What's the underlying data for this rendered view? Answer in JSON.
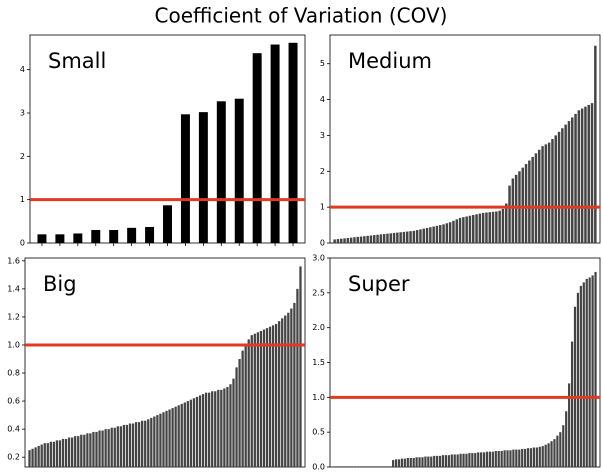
{
  "title": "Coefficient of Variation (COV)",
  "chart_data": [
    {
      "type": "bar",
      "title": "Small",
      "color": "#000000",
      "threshold": 1,
      "threshold_color": "#e03a22",
      "values": [
        0.2,
        0.2,
        0.22,
        0.3,
        0.3,
        0.35,
        0.37,
        0.87,
        2.97,
        3.02,
        3.27,
        3.33,
        4.38,
        4.58,
        4.62
      ],
      "ylim": [
        0,
        4.8
      ],
      "yticks": [
        0,
        1,
        2,
        3,
        4
      ]
    },
    {
      "type": "bar",
      "title": "Medium",
      "color": "#444444",
      "threshold": 1,
      "threshold_color": "#e03a22",
      "values": [
        0.1,
        0.11,
        0.12,
        0.13,
        0.14,
        0.15,
        0.16,
        0.17,
        0.18,
        0.19,
        0.2,
        0.21,
        0.22,
        0.23,
        0.24,
        0.25,
        0.26,
        0.27,
        0.28,
        0.29,
        0.3,
        0.31,
        0.32,
        0.33,
        0.34,
        0.36,
        0.38,
        0.4,
        0.42,
        0.44,
        0.46,
        0.48,
        0.5,
        0.52,
        0.55,
        0.58,
        0.62,
        0.66,
        0.7,
        0.72,
        0.74,
        0.76,
        0.78,
        0.8,
        0.82,
        0.84,
        0.85,
        0.86,
        0.87,
        0.88,
        0.9,
        0.95,
        1.1,
        1.6,
        1.8,
        1.9,
        2.0,
        2.1,
        2.2,
        2.3,
        2.4,
        2.5,
        2.6,
        2.7,
        2.75,
        2.8,
        2.9,
        3.0,
        3.1,
        3.2,
        3.3,
        3.4,
        3.5,
        3.6,
        3.7,
        3.75,
        3.8,
        3.85,
        3.9,
        5.5
      ],
      "ylim": [
        0,
        5.8
      ],
      "yticks": [
        0,
        1,
        2,
        3,
        4,
        5
      ]
    },
    {
      "type": "bar",
      "title": "Big",
      "color": "#444444",
      "threshold": 1,
      "threshold_color": "#e03a22",
      "values": [
        0.25,
        0.26,
        0.27,
        0.28,
        0.29,
        0.3,
        0.3,
        0.31,
        0.31,
        0.32,
        0.32,
        0.33,
        0.33,
        0.34,
        0.34,
        0.35,
        0.35,
        0.36,
        0.36,
        0.37,
        0.37,
        0.38,
        0.38,
        0.39,
        0.39,
        0.4,
        0.4,
        0.41,
        0.41,
        0.42,
        0.42,
        0.43,
        0.43,
        0.44,
        0.44,
        0.45,
        0.45,
        0.46,
        0.46,
        0.47,
        0.48,
        0.49,
        0.5,
        0.51,
        0.52,
        0.53,
        0.54,
        0.55,
        0.56,
        0.57,
        0.58,
        0.59,
        0.6,
        0.61,
        0.62,
        0.63,
        0.64,
        0.65,
        0.66,
        0.66,
        0.67,
        0.67,
        0.68,
        0.68,
        0.69,
        0.7,
        0.72,
        0.76,
        0.84,
        0.9,
        0.96,
        1.0,
        1.04,
        1.07,
        1.08,
        1.09,
        1.1,
        1.11,
        1.12,
        1.13,
        1.14,
        1.15,
        1.17,
        1.19,
        1.21,
        1.23,
        1.26,
        1.3,
        1.4,
        1.56
      ],
      "ylim": [
        0.13,
        1.62
      ],
      "yticks": [
        0.2,
        0.4,
        0.6,
        0.8,
        {
          "value": 1,
          "label": "1.0"
        },
        1.2,
        1.4,
        1.6
      ]
    },
    {
      "type": "bar",
      "title": "Super",
      "color": "#444444",
      "threshold": 1,
      "threshold_color": "#e03a22",
      "values": [
        0.01,
        0.01,
        0.01,
        0.01,
        0.01,
        0.01,
        0.01,
        0.01,
        0.01,
        0.01,
        0.01,
        0.01,
        0.01,
        0.01,
        0.01,
        0.01,
        0.01,
        0.01,
        0.01,
        0.01,
        0.1,
        0.11,
        0.11,
        0.12,
        0.12,
        0.13,
        0.13,
        0.13,
        0.14,
        0.14,
        0.14,
        0.15,
        0.15,
        0.15,
        0.16,
        0.16,
        0.16,
        0.17,
        0.17,
        0.17,
        0.18,
        0.18,
        0.18,
        0.19,
        0.19,
        0.19,
        0.2,
        0.2,
        0.2,
        0.21,
        0.21,
        0.21,
        0.22,
        0.22,
        0.22,
        0.23,
        0.23,
        0.23,
        0.24,
        0.24,
        0.24,
        0.25,
        0.25,
        0.25,
        0.26,
        0.26,
        0.27,
        0.27,
        0.28,
        0.28,
        0.29,
        0.3,
        0.32,
        0.34,
        0.37,
        0.4,
        0.45,
        0.5,
        0.6,
        0.8,
        1.2,
        1.8,
        2.3,
        2.5,
        2.6,
        2.65,
        2.7,
        2.72,
        2.75,
        2.8
      ],
      "ylim": [
        0,
        3.0
      ],
      "yticks": [
        {
          "value": 0,
          "label": "0.0"
        },
        0.5,
        {
          "value": 1,
          "label": "1.0"
        },
        1.5,
        {
          "value": 2,
          "label": "2.0"
        },
        2.5,
        {
          "value": 3,
          "label": "3.0"
        }
      ]
    }
  ]
}
